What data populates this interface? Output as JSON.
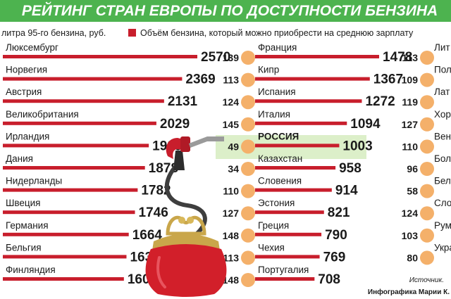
{
  "colors": {
    "title_band": "#4db34f",
    "bar": "#c81e2c",
    "circle": "#f4b06a",
    "russia_highlight": "#dcefc9",
    "purse": "#d21f2a",
    "pump": "#c81e2c"
  },
  "header": {
    "title": "РЕЙТИНГ СТРАН ЕВРОПЫ ПО ДОСТУПНОСТИ БЕНЗИНА"
  },
  "legend": {
    "price_label": "литра 95-го бензина, руб.",
    "volume_label": "Объём бензина, который можно приобрести на среднюю зарплату"
  },
  "source": {
    "source_label": "Источник.",
    "credit_label": "Инфографика Марии К."
  },
  "chart_data": {
    "type": "bar",
    "title": "РЕЙТИНГ СТРАН ЕВРОПЫ ПО ДОСТУПНОСТИ БЕНЗИНА",
    "columns": [
      {
        "countries": [
          "Люксембург",
          "Норвегия",
          "Австрия",
          "Великобритания",
          "Ирландия",
          "Дания",
          "Нидерланды",
          "Швеция",
          "Германия",
          "Бельгия",
          "Финляндия"
        ],
        "volume": [
          2570,
          2369,
          2131,
          2029,
          1929,
          1878,
          1782,
          1746,
          1664,
          1634,
          1600
        ]
      },
      {
        "countries": [
          "Франция",
          "Кипр",
          "Испания",
          "Италия",
          "РОССИЯ",
          "Казахстан",
          "Словения",
          "Эстония",
          "Греция",
          "Чехия",
          "Португалия"
        ],
        "volume": [
          1478,
          1367,
          1272,
          1094,
          1003,
          958,
          914,
          821,
          790,
          769,
          708
        ],
        "price": [
          139,
          113,
          124,
          145,
          49,
          34,
          110,
          127,
          148,
          113,
          148
        ]
      },
      {
        "countries": [
          "Лит",
          "Пол",
          "Лат",
          "Хор",
          "Вен",
          "Бол",
          "Бел",
          "Сло",
          "Рум",
          "Укра"
        ],
        "price": [
          113,
          109,
          119,
          127,
          110,
          96,
          58,
          124,
          103,
          80
        ]
      }
    ],
    "highlight": "РОССИЯ"
  }
}
